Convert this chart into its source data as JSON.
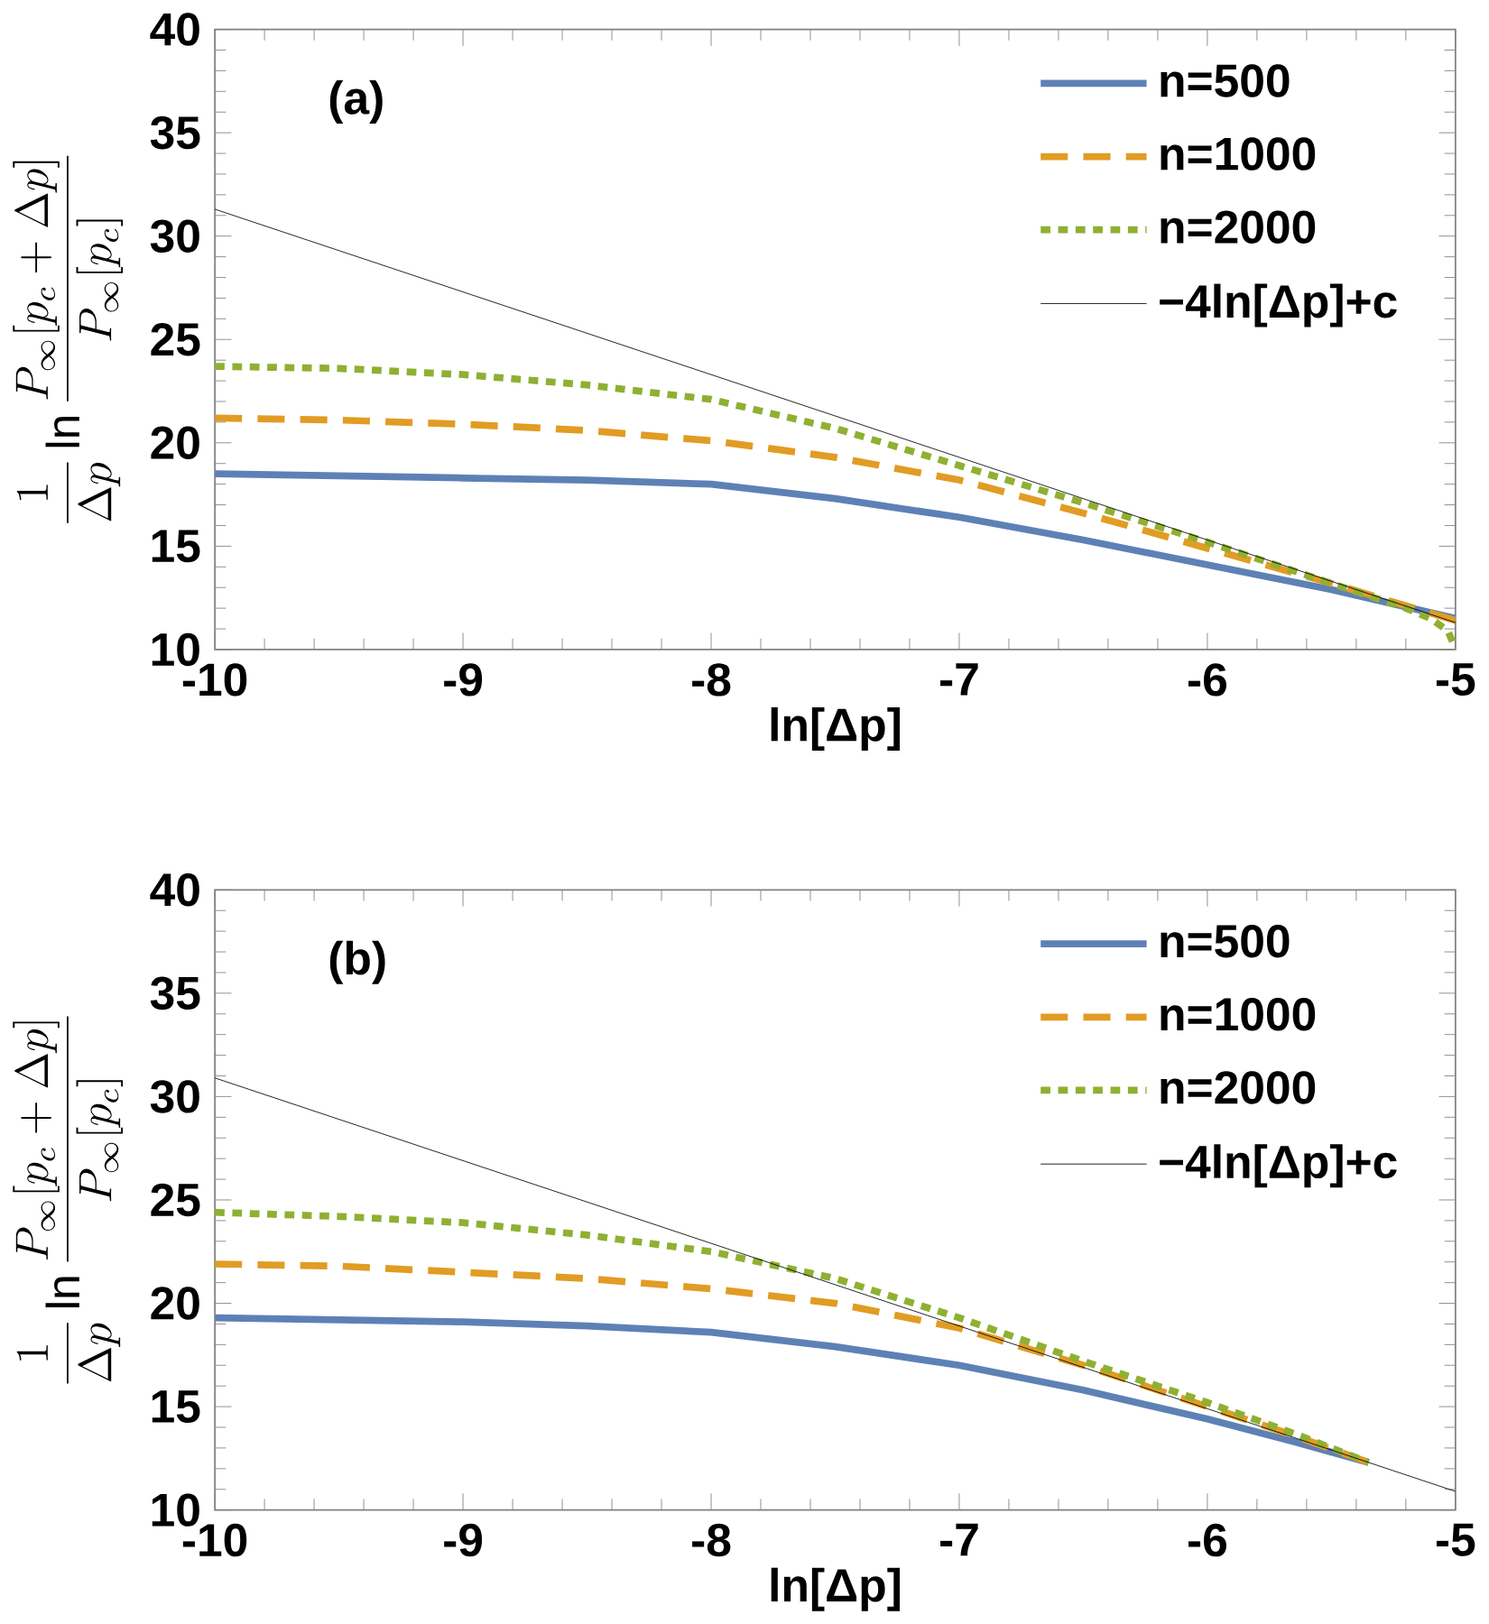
{
  "chart_data": [
    {
      "type": "line",
      "xlabel": "ln[Δp]",
      "ylabel": "\\frac{1}{\\Delta p}\\ln\\frac{P_\\infty[p_c+\\Delta p]}{P_\\infty[p_c]}",
      "annotations": [
        "(a)"
      ],
      "xlim": [
        -10,
        -5
      ],
      "ylim": [
        10,
        40
      ],
      "xticks": [
        -10,
        -9,
        -8,
        -7,
        -6,
        -5
      ],
      "yticks": [
        10,
        15,
        20,
        25,
        30,
        35,
        40
      ],
      "legend": "top right",
      "grid": false,
      "marker": "none",
      "series": [
        {
          "name": "n=500",
          "color": "#5e81b5",
          "line_style": "solid",
          "x": [
            -10,
            -9.5,
            -9,
            -8.5,
            -8,
            -7.5,
            -7,
            -6.5,
            -6,
            -5.5,
            -5
          ],
          "values": [
            18.5,
            18.4,
            18.3,
            18.2,
            18.0,
            17.3,
            16.4,
            15.3,
            14.1,
            12.9,
            11.5
          ]
        },
        {
          "name": "n=1000",
          "color": "#e19c24",
          "line_style": "dashed",
          "x": [
            -10,
            -9.5,
            -9,
            -8.5,
            -8,
            -7.5,
            -7,
            -6.5,
            -6,
            -5.5,
            -5
          ],
          "values": [
            21.2,
            21.1,
            20.9,
            20.6,
            20.1,
            19.3,
            18.2,
            16.6,
            14.9,
            13.2,
            11.4
          ]
        },
        {
          "name": "n=2000",
          "color": "#8fb032",
          "line_style": "dotted",
          "x": [
            -10,
            -9.5,
            -9,
            -8.5,
            -8,
            -7.5,
            -7,
            -6.5,
            -6,
            -5.5,
            -5.2,
            -5.1,
            -5.03,
            -5
          ],
          "values": [
            23.7,
            23.6,
            23.3,
            22.8,
            22.1,
            20.7,
            18.9,
            17.1,
            15.2,
            13.2,
            12.0,
            11.5,
            10.9,
            10.0
          ]
        },
        {
          "name": "−4ln[Δp]+c",
          "color": "#000000",
          "line_style": "solid",
          "x": [
            -10,
            -5
          ],
          "values": [
            31.3,
            11.3
          ]
        }
      ]
    },
    {
      "type": "line",
      "xlabel": "ln[Δp]",
      "ylabel": "\\frac{1}{\\Delta p}\\ln\\frac{P_\\infty[p_c+\\Delta p]}{P_\\infty[p_c]}",
      "annotations": [
        "(b)"
      ],
      "xlim": [
        -10,
        -5
      ],
      "ylim": [
        10,
        40
      ],
      "xticks": [
        -10,
        -9,
        -8,
        -7,
        -6,
        -5
      ],
      "yticks": [
        10,
        15,
        20,
        25,
        30,
        35,
        40
      ],
      "legend": "top right",
      "grid": false,
      "marker": "none",
      "series": [
        {
          "name": "n=500",
          "color": "#5e81b5",
          "line_style": "solid",
          "x": [
            -10,
            -9.5,
            -9,
            -8.5,
            -8,
            -7.5,
            -7,
            -6.5,
            -6,
            -5.65,
            -5.35
          ],
          "values": [
            19.3,
            19.2,
            19.1,
            18.9,
            18.6,
            17.9,
            17.0,
            15.8,
            14.4,
            13.3,
            12.3
          ]
        },
        {
          "name": "n=1000",
          "color": "#e19c24",
          "line_style": "dashed",
          "x": [
            -10,
            -9.5,
            -9,
            -8.5,
            -8,
            -7.5,
            -7,
            -6.5,
            -6,
            -5.65,
            -5.35
          ],
          "values": [
            21.9,
            21.8,
            21.5,
            21.2,
            20.7,
            20.0,
            18.8,
            17.0,
            15.0,
            13.6,
            12.3
          ]
        },
        {
          "name": "n=2000",
          "color": "#8fb032",
          "line_style": "dotted",
          "x": [
            -10,
            -9.5,
            -9,
            -8.5,
            -8,
            -7.5,
            -7,
            -6.5,
            -6,
            -5.65,
            -5.35
          ],
          "values": [
            24.4,
            24.2,
            23.9,
            23.3,
            22.5,
            21.2,
            19.3,
            17.2,
            15.2,
            13.7,
            12.3
          ]
        },
        {
          "name": "−4ln[Δp]+c",
          "color": "#000000",
          "line_style": "solid",
          "x": [
            -10,
            -5
          ],
          "values": [
            30.9,
            10.9
          ]
        }
      ]
    }
  ]
}
